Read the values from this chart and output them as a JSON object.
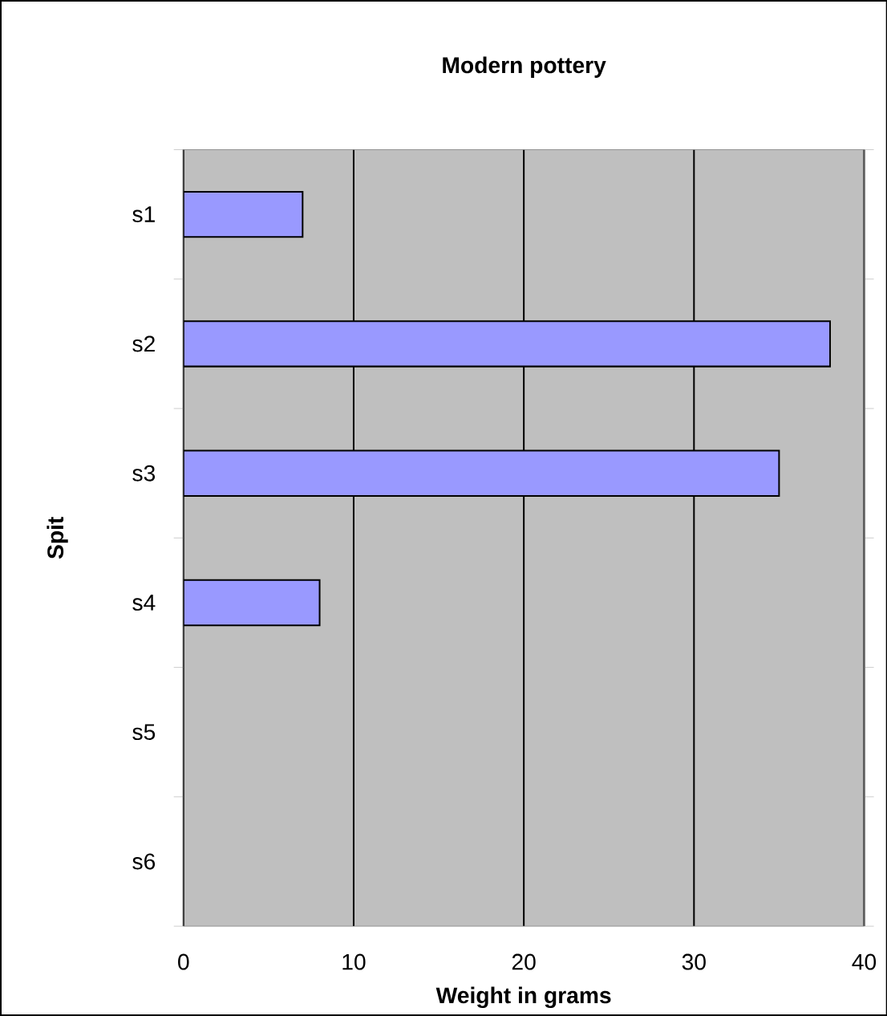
{
  "chart_data": {
    "type": "bar",
    "orientation": "horizontal",
    "title": "Modern pottery",
    "xlabel": "Weight in grams",
    "ylabel": "Spit",
    "categories": [
      "s1",
      "s2",
      "s3",
      "s4",
      "s5",
      "s6"
    ],
    "values": [
      7,
      38,
      35,
      8,
      null,
      null
    ],
    "color": "#9999ff",
    "xlim": [
      0,
      40
    ],
    "xticks": [
      0,
      10,
      20,
      30,
      40
    ],
    "grid": "x"
  }
}
